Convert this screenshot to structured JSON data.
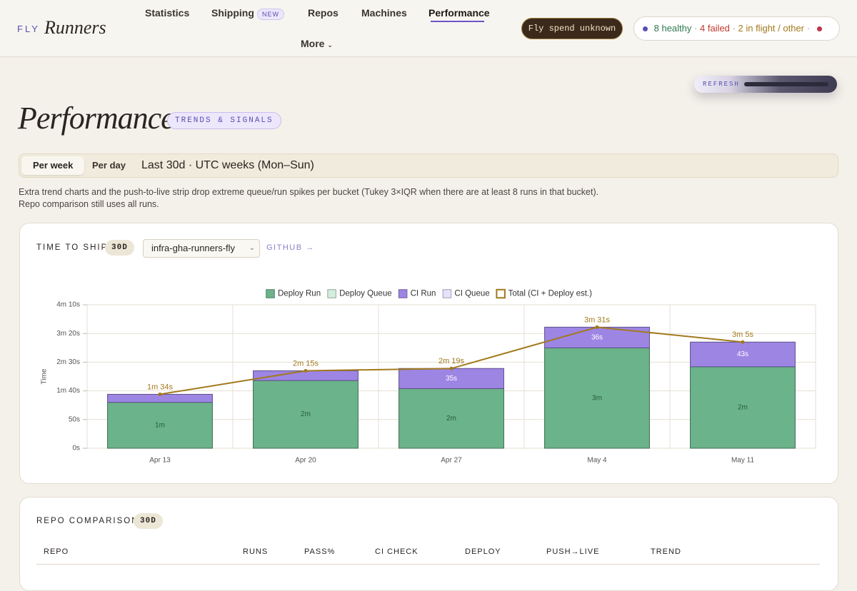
{
  "header": {
    "brand_prefix": "FLY",
    "brand": "Runners",
    "nav": [
      "Statistics",
      "Shipping",
      "Repos",
      "Machines",
      "Performance",
      "More"
    ],
    "new_badge": "NEW",
    "spend": "Fly spend unknown",
    "status": [
      "8 healthy",
      "4 failed",
      "2 in flight / other"
    ]
  },
  "refresh": "REFRESH",
  "page": {
    "title": "Performance",
    "badge": "TRENDS & SIGNALS",
    "tabs": [
      "Per week",
      "Per day"
    ],
    "range": "Last 30d · UTC weeks (Mon–Sun)",
    "note": [
      "Extra trend charts and the push-to-live strip drop extreme queue/run spikes per bucket (Tukey 3×IQR when there are at least 8 runs in that bucket).",
      "Repo comparison still uses all runs."
    ]
  },
  "time_to_ship": {
    "title": "TIME TO SHIP",
    "period": "30D",
    "repo": "infra-gha-runners-fly",
    "link": "GITHUB →"
  },
  "chart_data": {
    "type": "bar",
    "stacked": true,
    "y_label": "Time",
    "categories": [
      "Apr 13",
      "Apr 20",
      "Apr 27",
      "May 4",
      "May 11"
    ],
    "ylim": [
      0,
      250
    ],
    "yticks": [
      {
        "value": 0,
        "label": "0s"
      },
      {
        "value": 50,
        "label": "50s"
      },
      {
        "value": 100,
        "label": "1m 40s"
      },
      {
        "value": 150,
        "label": "2m 30s"
      },
      {
        "value": 200,
        "label": "3m 20s"
      },
      {
        "value": 250,
        "label": "4m 10s"
      }
    ],
    "grid": true,
    "series": [
      {
        "name": "Deploy Run",
        "color": "#6bb38a",
        "values": [
          80,
          118,
          104,
          175,
          142
        ],
        "value_labels": [
          "1m",
          "2m",
          "2m",
          "3m",
          "2m"
        ]
      },
      {
        "name": "Deploy Queue",
        "color": "#d3eedc",
        "values": [
          0,
          0,
          0,
          0,
          0
        ]
      },
      {
        "name": "CI Run",
        "color": "#9d85e4",
        "values": [
          14,
          17,
          35,
          36,
          43
        ],
        "value_labels": [
          null,
          null,
          "35s",
          "36s",
          "43s"
        ]
      },
      {
        "name": "CI Queue",
        "color": "#e7e1fa",
        "values": [
          0,
          0,
          0,
          0,
          0
        ]
      },
      {
        "name": "Total (CI + Deploy est.)",
        "color": "#a27a1c",
        "type": "line",
        "values": [
          94,
          135,
          139,
          211,
          185
        ],
        "value_labels": [
          "1m 34s",
          "2m 15s",
          "2m 19s",
          "3m 31s",
          "3m 5s"
        ]
      }
    ]
  },
  "repo_comparison": {
    "title": "REPO COMPARISON",
    "period": "30D",
    "columns": [
      "REPO",
      "RUNS",
      "PASS%",
      "CI CHECK",
      "DEPLOY",
      "PUSH→LIVE",
      "TREND"
    ]
  }
}
